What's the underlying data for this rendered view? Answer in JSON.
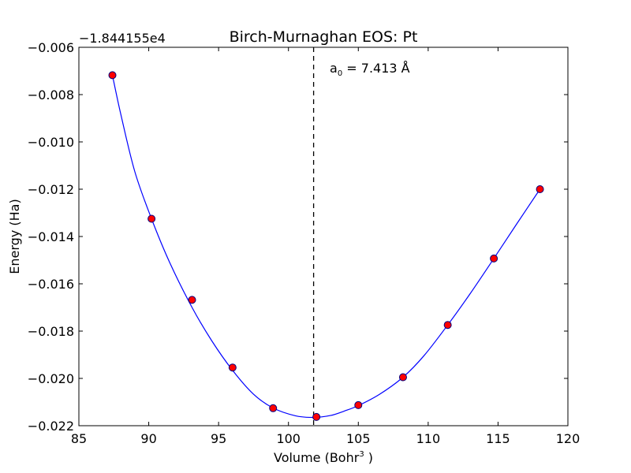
{
  "chart_data": {
    "type": "scatter",
    "title": "Birch-Murnaghan EOS: Pt",
    "xlabel_main": "Volume (Bohr",
    "xlabel_sup": "3",
    "xlabel_end": " )",
    "ylabel": "Energy (Ha)",
    "y_offset_text": "−1.844155e4",
    "annotation_base": "a",
    "annotation_sub": "0",
    "annotation_rest": " = 7.413 Å",
    "xlim": [
      85,
      120
    ],
    "ylim": [
      -0.022,
      -0.006
    ],
    "x_ticks": [
      85,
      90,
      95,
      100,
      105,
      110,
      115,
      120
    ],
    "x_tick_labels": [
      "85",
      "90",
      "95",
      "100",
      "105",
      "110",
      "115",
      "120"
    ],
    "y_ticks": [
      -0.022,
      -0.02,
      -0.018,
      -0.016,
      -0.014,
      -0.012,
      -0.01,
      -0.008,
      -0.006
    ],
    "y_tick_labels": [
      "−0.022",
      "−0.020",
      "−0.018",
      "−0.016",
      "−0.014",
      "−0.012",
      "−0.010",
      "−0.008",
      "−0.006"
    ],
    "vline_x": 101.8,
    "points": [
      {
        "x": 87.4,
        "y": -0.00718
      },
      {
        "x": 90.2,
        "y": -0.01325
      },
      {
        "x": 93.1,
        "y": -0.01668
      },
      {
        "x": 96.0,
        "y": -0.01954
      },
      {
        "x": 98.9,
        "y": -0.02126
      },
      {
        "x": 102.0,
        "y": -0.02163
      },
      {
        "x": 105.0,
        "y": -0.02113
      },
      {
        "x": 108.2,
        "y": -0.01995
      },
      {
        "x": 111.4,
        "y": -0.01774
      },
      {
        "x": 114.7,
        "y": -0.01493
      },
      {
        "x": 118.0,
        "y": -0.012
      }
    ],
    "fit_curve": [
      {
        "x": 87.4,
        "y": -0.00718
      },
      {
        "x": 88.0,
        "y": -0.00883
      },
      {
        "x": 89.0,
        "y": -0.01125
      },
      {
        "x": 90.2,
        "y": -0.01325
      },
      {
        "x": 91.5,
        "y": -0.0151
      },
      {
        "x": 93.1,
        "y": -0.017
      },
      {
        "x": 94.5,
        "y": -0.0184
      },
      {
        "x": 96.0,
        "y": -0.01966
      },
      {
        "x": 97.5,
        "y": -0.02067
      },
      {
        "x": 98.9,
        "y": -0.02125
      },
      {
        "x": 100.5,
        "y": -0.02158
      },
      {
        "x": 101.8,
        "y": -0.02165
      },
      {
        "x": 103.0,
        "y": -0.02157
      },
      {
        "x": 104.0,
        "y": -0.02138
      },
      {
        "x": 105.0,
        "y": -0.02115
      },
      {
        "x": 106.5,
        "y": -0.02068
      },
      {
        "x": 108.2,
        "y": -0.01995
      },
      {
        "x": 109.7,
        "y": -0.01904
      },
      {
        "x": 111.4,
        "y": -0.01774
      },
      {
        "x": 113.0,
        "y": -0.01642
      },
      {
        "x": 114.7,
        "y": -0.01493
      },
      {
        "x": 116.3,
        "y": -0.0135
      },
      {
        "x": 118.0,
        "y": -0.012
      }
    ],
    "colors": {
      "curve": "#0000ff",
      "marker_fill": "#ff0000",
      "marker_edge": "#000080",
      "vline": "#000000",
      "axes": "#000000"
    },
    "grid": false
  }
}
